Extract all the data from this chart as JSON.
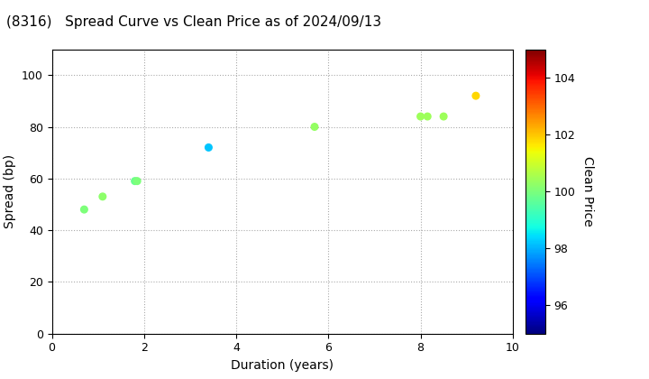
{
  "title": "(8316)   Spread Curve vs Clean Price as of 2024/09/13",
  "xlabel": "Duration (years)",
  "ylabel": "Spread (bp)",
  "colorbar_label": "Clean Price",
  "xlim": [
    0,
    10
  ],
  "ylim": [
    0,
    110
  ],
  "xticks": [
    0,
    2,
    4,
    6,
    8,
    10
  ],
  "yticks": [
    0,
    20,
    40,
    60,
    80,
    100
  ],
  "colorbar_ticks": [
    96,
    98,
    100,
    102,
    104
  ],
  "colorbar_vmin": 95,
  "colorbar_vmax": 105,
  "points": [
    {
      "duration": 0.7,
      "spread": 48,
      "price": 100.0
    },
    {
      "duration": 1.1,
      "spread": 53,
      "price": 100.2
    },
    {
      "duration": 1.8,
      "spread": 59,
      "price": 99.8
    },
    {
      "duration": 1.85,
      "spread": 59,
      "price": 100.0
    },
    {
      "duration": 3.4,
      "spread": 72,
      "price": 98.2
    },
    {
      "duration": 5.7,
      "spread": 80,
      "price": 100.3
    },
    {
      "duration": 8.0,
      "spread": 84,
      "price": 100.4
    },
    {
      "duration": 8.15,
      "spread": 84,
      "price": 100.4
    },
    {
      "duration": 8.5,
      "spread": 84,
      "price": 100.4
    },
    {
      "duration": 9.2,
      "spread": 92,
      "price": 101.8
    }
  ],
  "background_color": "#ffffff",
  "grid_color": "#aaaaaa",
  "marker_size": 30,
  "colormap": "jet"
}
